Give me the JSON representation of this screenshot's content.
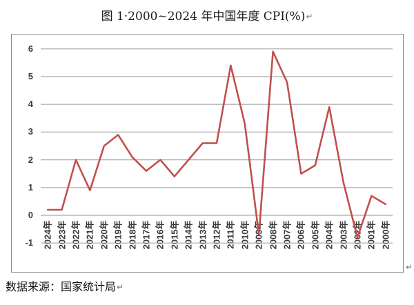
{
  "title": "图 1·2000~2024 年中国年度 CPI(%)",
  "source_note": "数据来源：国家统计局",
  "marks": {
    "paragraph": "↵"
  },
  "chart_data": {
    "type": "line",
    "title": "图 1 2000~2024 年中国年度 CPI(%)",
    "xlabel": "",
    "ylabel": "",
    "categories": [
      "2024年",
      "2023年",
      "2022年",
      "2021年",
      "2020年",
      "2019年",
      "2018年",
      "2017年",
      "2016年",
      "2015年",
      "2014年",
      "2013年",
      "2012年",
      "2011年",
      "2010年",
      "2009年",
      "2008年",
      "2007年",
      "2006年",
      "2005年",
      "2004年",
      "2003年",
      "2002年",
      "2001年",
      "2000年"
    ],
    "values": [
      0.2,
      0.2,
      2.0,
      0.9,
      2.5,
      2.9,
      2.1,
      1.6,
      2.0,
      1.4,
      2.0,
      2.6,
      2.6,
      5.4,
      3.3,
      -0.7,
      5.9,
      4.8,
      1.5,
      1.8,
      3.9,
      1.2,
      -0.8,
      0.7,
      0.4
    ],
    "yticks": [
      6,
      5,
      4,
      3,
      2,
      1,
      0,
      -1
    ],
    "ylim": [
      -1,
      6
    ],
    "grid": true,
    "legend": "none",
    "line_color": "#c0504d",
    "grid_color": "#a8a8a8",
    "axis_label_color": "#3b3b3b"
  }
}
